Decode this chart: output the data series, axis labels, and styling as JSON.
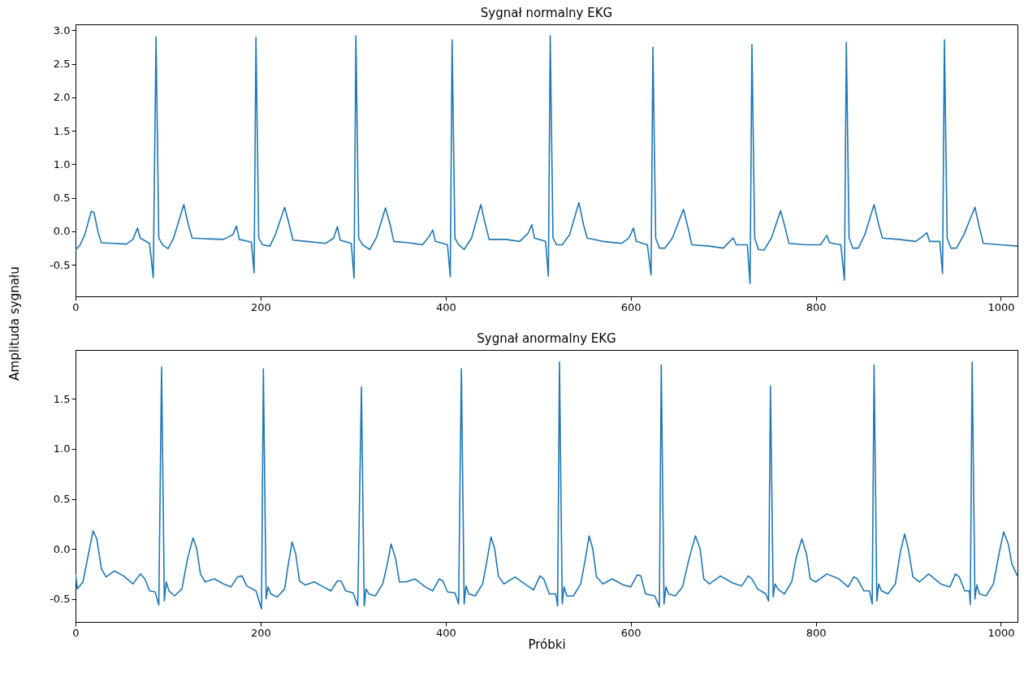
{
  "chart_data": [
    {
      "type": "line",
      "title": "Sygnał normalny EKG",
      "ylabel": "Amplituda sygnału",
      "grid": false,
      "marker": "none",
      "line_style": "solid",
      "xlim": [
        0,
        1018
      ],
      "xticks": [
        0,
        200,
        400,
        600,
        800,
        1000
      ],
      "ylim": [
        -0.97,
        3.09
      ],
      "yticks": [
        -0.5,
        {
          "value": 0,
          "label": "0.0"
        },
        0.5,
        {
          "value": 1,
          "label": "1.0"
        },
        1.5,
        {
          "value": 2,
          "label": "2.0"
        },
        2.5,
        {
          "value": 3,
          "label": "3.0"
        }
      ],
      "series": [
        {
          "color": "#1f77b4",
          "x": [
            0,
            5,
            10,
            17,
            20,
            25,
            28,
            40,
            55,
            62,
            67,
            70,
            80,
            84,
            87,
            90,
            94,
            100,
            106,
            117,
            122,
            126,
            140,
            160,
            170,
            174,
            177,
            190,
            193,
            195,
            198,
            202,
            210,
            216,
            226,
            231,
            235,
            250,
            270,
            279,
            283,
            286,
            298,
            301,
            303,
            306,
            310,
            318,
            325,
            335,
            340,
            344,
            360,
            375,
            382,
            386,
            389,
            402,
            405,
            407,
            410,
            414,
            420,
            428,
            438,
            443,
            447,
            465,
            480,
            489,
            493,
            496,
            508,
            511,
            513,
            516,
            520,
            526,
            534,
            544,
            549,
            553,
            570,
            590,
            598,
            603,
            606,
            618,
            622,
            624,
            627,
            631,
            637,
            645,
            657,
            662,
            666,
            685,
            700,
            707,
            711,
            714,
            726,
            729,
            731,
            734,
            738,
            744,
            752,
            762,
            767,
            771,
            790,
            805,
            809,
            812,
            815,
            827,
            831,
            833,
            836,
            840,
            846,
            853,
            863,
            868,
            872,
            890,
            908,
            915,
            920,
            923,
            934,
            937,
            939,
            942,
            946,
            952,
            960,
            972,
            977,
            981,
            1000,
            1018
          ],
          "values": [
            -0.28,
            -0.2,
            -0.05,
            0.3,
            0.28,
            -0.05,
            -0.17,
            -0.18,
            -0.19,
            -0.12,
            0.05,
            -0.1,
            -0.18,
            -0.69,
            2.9,
            -0.1,
            -0.2,
            -0.26,
            -0.1,
            0.4,
            0.1,
            -0.1,
            -0.11,
            -0.12,
            -0.05,
            0.08,
            -0.12,
            -0.16,
            -0.62,
            2.9,
            -0.1,
            -0.2,
            -0.22,
            -0.05,
            0.36,
            0.1,
            -0.13,
            -0.15,
            -0.18,
            -0.1,
            0.07,
            -0.13,
            -0.18,
            -0.7,
            2.92,
            -0.1,
            -0.2,
            -0.27,
            -0.1,
            0.35,
            0.1,
            -0.15,
            -0.17,
            -0.2,
            -0.08,
            0.02,
            -0.15,
            -0.2,
            -0.68,
            2.86,
            -0.1,
            -0.2,
            -0.27,
            -0.1,
            0.4,
            0.1,
            -0.12,
            -0.12,
            -0.15,
            -0.03,
            0.1,
            -0.1,
            -0.15,
            -0.67,
            2.92,
            -0.1,
            -0.2,
            -0.2,
            -0.05,
            0.43,
            0.1,
            -0.1,
            -0.15,
            -0.18,
            -0.1,
            0.05,
            -0.15,
            -0.2,
            -0.65,
            2.75,
            -0.1,
            -0.25,
            -0.25,
            -0.1,
            0.33,
            0.05,
            -0.2,
            -0.22,
            -0.25,
            -0.15,
            -0.1,
            -0.2,
            -0.2,
            -0.78,
            2.79,
            -0.1,
            -0.27,
            -0.28,
            -0.1,
            0.31,
            0.05,
            -0.18,
            -0.2,
            -0.2,
            -0.12,
            -0.06,
            -0.17,
            -0.2,
            -0.73,
            2.82,
            -0.1,
            -0.25,
            -0.25,
            -0.05,
            0.4,
            0.1,
            -0.1,
            -0.12,
            -0.15,
            -0.08,
            -0.02,
            -0.15,
            -0.15,
            -0.63,
            2.86,
            -0.1,
            -0.25,
            -0.25,
            -0.05,
            0.36,
            0.05,
            -0.18,
            -0.2,
            -0.22
          ]
        }
      ]
    },
    {
      "type": "line",
      "title": "Sygnał anormalny EKG",
      "xlabel": "Próbki",
      "grid": false,
      "marker": "none",
      "line_style": "solid",
      "xlim": [
        0,
        1018
      ],
      "xticks": [
        0,
        200,
        400,
        600,
        800,
        1000
      ],
      "ylim": [
        -0.73,
        1.99
      ],
      "yticks": [
        -0.5,
        {
          "value": 0,
          "label": "0.0"
        },
        0.5,
        {
          "value": 1,
          "label": "1.0"
        },
        1.5
      ],
      "series": [
        {
          "color": "#1f77b4",
          "x": [
            0,
            2,
            8,
            14,
            19,
            23,
            28,
            33,
            42,
            52,
            62,
            70,
            75,
            80,
            86,
            90,
            93,
            96,
            98,
            101,
            107,
            115,
            121,
            127,
            131,
            135,
            140,
            150,
            160,
            168,
            175,
            180,
            185,
            195,
            201,
            203,
            206,
            208,
            211,
            218,
            226,
            230,
            234,
            238,
            242,
            248,
            258,
            268,
            276,
            283,
            287,
            292,
            300,
            305,
            309,
            312,
            314,
            317,
            324,
            332,
            337,
            341,
            346,
            350,
            357,
            367,
            378,
            386,
            393,
            397,
            402,
            410,
            414,
            417,
            420,
            422,
            425,
            432,
            440,
            445,
            449,
            453,
            457,
            463,
            475,
            487,
            495,
            502,
            506,
            512,
            519,
            521,
            523,
            526,
            528,
            531,
            538,
            546,
            551,
            555,
            559,
            563,
            570,
            580,
            592,
            600,
            607,
            611,
            616,
            626,
            631,
            633,
            636,
            638,
            641,
            648,
            656,
            663,
            670,
            675,
            679,
            685,
            697,
            710,
            720,
            727,
            731,
            737,
            746,
            749,
            751,
            754,
            756,
            759,
            766,
            774,
            779,
            785,
            790,
            794,
            800,
            812,
            825,
            835,
            841,
            845,
            852,
            858,
            861,
            863,
            866,
            868,
            871,
            878,
            886,
            891,
            896,
            900,
            905,
            912,
            922,
            935,
            945,
            951,
            955,
            961,
            966,
            967,
            969,
            972,
            974,
            977,
            984,
            992,
            998,
            1003,
            1008,
            1012,
            1018
          ],
          "values": [
            -0.25,
            -0.4,
            -0.33,
            -0.05,
            0.18,
            0.1,
            -0.2,
            -0.28,
            -0.22,
            -0.27,
            -0.35,
            -0.25,
            -0.3,
            -0.42,
            -0.43,
            -0.56,
            1.82,
            -0.52,
            -0.33,
            -0.42,
            -0.47,
            -0.4,
            -0.1,
            0.11,
            0.0,
            -0.25,
            -0.33,
            -0.3,
            -0.35,
            -0.38,
            -0.28,
            -0.27,
            -0.37,
            -0.42,
            -0.6,
            1.8,
            -0.5,
            -0.38,
            -0.45,
            -0.48,
            -0.4,
            -0.15,
            0.07,
            -0.05,
            -0.32,
            -0.36,
            -0.33,
            -0.38,
            -0.42,
            -0.32,
            -0.32,
            -0.42,
            -0.44,
            -0.57,
            1.62,
            -0.57,
            -0.4,
            -0.45,
            -0.47,
            -0.35,
            -0.15,
            0.05,
            -0.1,
            -0.33,
            -0.33,
            -0.3,
            -0.38,
            -0.42,
            -0.3,
            -0.32,
            -0.43,
            -0.44,
            -0.55,
            1.8,
            -0.55,
            -0.37,
            -0.45,
            -0.47,
            -0.35,
            -0.1,
            0.12,
            0.0,
            -0.27,
            -0.35,
            -0.28,
            -0.36,
            -0.41,
            -0.27,
            -0.3,
            -0.45,
            -0.45,
            -0.57,
            1.87,
            -0.55,
            -0.38,
            -0.47,
            -0.47,
            -0.35,
            -0.1,
            0.13,
            0.0,
            -0.28,
            -0.35,
            -0.3,
            -0.36,
            -0.38,
            -0.26,
            -0.27,
            -0.45,
            -0.47,
            -0.58,
            1.84,
            -0.55,
            -0.38,
            -0.45,
            -0.47,
            -0.38,
            -0.1,
            0.13,
            0.0,
            -0.3,
            -0.35,
            -0.27,
            -0.34,
            -0.37,
            -0.27,
            -0.3,
            -0.4,
            -0.45,
            -0.52,
            1.63,
            -0.48,
            -0.35,
            -0.4,
            -0.45,
            -0.33,
            -0.08,
            0.1,
            -0.05,
            -0.3,
            -0.33,
            -0.25,
            -0.3,
            -0.38,
            -0.28,
            -0.3,
            -0.42,
            -0.42,
            -0.55,
            1.84,
            -0.52,
            -0.35,
            -0.42,
            -0.45,
            -0.35,
            -0.05,
            0.15,
            0.0,
            -0.28,
            -0.33,
            -0.25,
            -0.35,
            -0.38,
            -0.25,
            -0.28,
            -0.42,
            -0.42,
            -0.56,
            1.87,
            -0.5,
            -0.36,
            -0.45,
            -0.47,
            -0.35,
            -0.05,
            0.17,
            0.05,
            -0.15,
            -0.27
          ]
        }
      ]
    }
  ]
}
